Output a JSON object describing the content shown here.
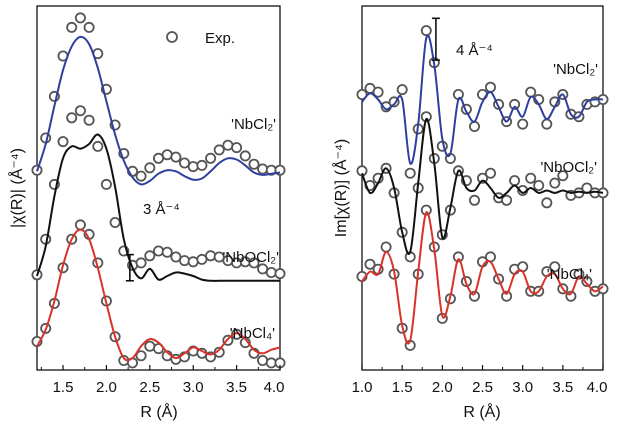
{
  "chart_data": [
    {
      "type": "line",
      "panel": "left",
      "xlabel": "R (Å)",
      "ylabel": "|χ(R)| (Å⁻⁴)",
      "xlim": [
        1.2,
        4.0
      ],
      "xticks": [
        "1.5",
        "2.0",
        "2.5",
        "3.0",
        "3.5",
        "4.0"
      ],
      "xtick_values": [
        1.5,
        2.0,
        2.5,
        3.0,
        3.5,
        4.0
      ],
      "yticks": "none",
      "legend": {
        "label": "Exp.",
        "marker": "open-circle",
        "position": "top-right"
      },
      "scale_bar": {
        "label": "3 Å⁻⁴",
        "from": 3.45,
        "to": 4.55,
        "x": 2.27
      },
      "stack_offsets": [
        7.5,
        3.4,
        0
      ],
      "series": [
        {
          "name": "'NbCl₂'",
          "fit_color": "#2e3f9e",
          "x": [
            1.2,
            1.3,
            1.4,
            1.5,
            1.6,
            1.7,
            1.8,
            1.9,
            2.0,
            2.1,
            2.2,
            2.3,
            2.4,
            2.5,
            2.6,
            2.7,
            2.8,
            2.9,
            3.0,
            3.1,
            3.2,
            3.3,
            3.4,
            3.5,
            3.6,
            3.7,
            3.8,
            3.9,
            4.0
          ],
          "fit": [
            0.55,
            1.7,
            3.3,
            4.8,
            5.8,
            6.2,
            5.9,
            4.9,
            3.5,
            2.1,
            1.0,
            0.3,
            0.0,
            0.15,
            0.45,
            0.6,
            0.55,
            0.35,
            0.2,
            0.25,
            0.55,
            0.9,
            1.1,
            1.05,
            0.8,
            0.5,
            0.4,
            0.45,
            0.5
          ],
          "exp": [
            0.6,
            1.95,
            3.7,
            5.4,
            6.6,
            7.0,
            6.6,
            5.5,
            4.0,
            2.5,
            1.3,
            0.55,
            0.35,
            0.7,
            1.1,
            1.25,
            1.15,
            0.9,
            0.75,
            0.8,
            1.1,
            1.45,
            1.65,
            1.55,
            1.2,
            0.85,
            0.65,
            0.6,
            0.6
          ]
        },
        {
          "name": "'NbOCl₂'",
          "fit_color": "#111111",
          "x": [
            1.2,
            1.3,
            1.4,
            1.5,
            1.6,
            1.7,
            1.8,
            1.9,
            2.0,
            2.1,
            2.2,
            2.3,
            2.4,
            2.5,
            2.6,
            2.7,
            2.8,
            2.9,
            3.0,
            3.1,
            3.2,
            3.3,
            3.4,
            3.5,
            3.6,
            3.7,
            3.8,
            3.9,
            4.0
          ],
          "fit": [
            0.25,
            1.5,
            3.6,
            5.2,
            5.7,
            5.6,
            5.8,
            6.2,
            5.6,
            4.0,
            1.8,
            0.6,
            0.15,
            0.55,
            0.1,
            0.25,
            0.4,
            0.35,
            0.25,
            0.1,
            0.05,
            0.05,
            0.05,
            0.05,
            0.05,
            0.05,
            0.05,
            0.05,
            0.05
          ],
          "exp": [
            0.3,
            1.8,
            4.1,
            5.9,
            6.9,
            7.2,
            6.8,
            5.7,
            4.1,
            2.5,
            1.3,
            0.7,
            0.8,
            1.1,
            1.3,
            1.25,
            1.05,
            0.9,
            0.85,
            0.95,
            1.1,
            1.05,
            0.9,
            0.8,
            0.85,
            0.8,
            0.55,
            0.4,
            0.35
          ]
        },
        {
          "name": "'NbCl₄'",
          "fit_color": "#d7332a",
          "x": [
            1.2,
            1.3,
            1.4,
            1.5,
            1.6,
            1.7,
            1.8,
            1.9,
            2.0,
            2.1,
            2.2,
            2.3,
            2.4,
            2.5,
            2.6,
            2.7,
            2.8,
            2.9,
            3.0,
            3.1,
            3.2,
            3.3,
            3.4,
            3.5,
            3.6,
            3.7,
            3.8,
            3.9,
            4.0
          ],
          "fit": [
            0.7,
            1.4,
            2.6,
            4.1,
            5.2,
            5.6,
            5.2,
            4.0,
            2.5,
            1.1,
            0.2,
            0.2,
            0.7,
            1.0,
            0.85,
            0.45,
            0.2,
            0.4,
            0.65,
            0.5,
            0.35,
            0.55,
            1.0,
            1.25,
            1.0,
            0.55,
            0.4,
            0.55,
            0.65
          ],
          "exp": [
            0.9,
            1.45,
            2.5,
            4.0,
            5.2,
            5.8,
            5.4,
            4.2,
            2.6,
            1.1,
            0.1,
            0.0,
            0.3,
            0.7,
            0.6,
            0.3,
            0.15,
            0.25,
            0.5,
            0.4,
            0.25,
            0.45,
            0.95,
            1.2,
            0.85,
            0.4,
            0.1,
            0.0,
            0.0
          ]
        }
      ]
    },
    {
      "type": "line",
      "panel": "right",
      "xlabel": "R (Å)",
      "ylabel": "Im[χ(R)] (Å⁻⁴)",
      "xlim": [
        1.0,
        4.0
      ],
      "xticks": [
        "1.0",
        "1.5",
        "2.0",
        "2.5",
        "3.0",
        "3.5",
        "4.0"
      ],
      "xtick_values": [
        1.0,
        1.5,
        2.0,
        2.5,
        3.0,
        3.5,
        4.0
      ],
      "yticks": "none",
      "scale_bar": {
        "label": "4 Å⁻⁴",
        "from": 9.0,
        "to": 10.7,
        "x": 1.92
      },
      "stack_offsets": [
        7.0,
        3.6,
        0
      ],
      "series": [
        {
          "name": "'NbCl₂'",
          "fit_color": "#2e3f9e",
          "x": [
            1.0,
            1.1,
            1.2,
            1.3,
            1.4,
            1.5,
            1.6,
            1.7,
            1.8,
            1.9,
            2.0,
            2.1,
            2.2,
            2.3,
            2.4,
            2.5,
            2.6,
            2.7,
            2.8,
            2.9,
            3.0,
            3.1,
            3.2,
            3.3,
            3.4,
            3.5,
            3.6,
            3.7,
            3.8,
            3.9,
            4.0
          ],
          "fit": [
            0.3,
            0.65,
            0.4,
            0.0,
            0.2,
            0.4,
            -2.2,
            -0.6,
            2.9,
            1.8,
            -1.2,
            -1.8,
            0.4,
            -0.1,
            -0.5,
            0.3,
            0.7,
            0.1,
            -0.5,
            0.1,
            -0.3,
            0.5,
            0.2,
            -0.4,
            0.1,
            0.6,
            -0.2,
            -0.3,
            0.3,
            0.4,
            0.4
          ],
          "exp": [
            0.6,
            0.85,
            0.7,
            0.1,
            0.3,
            0.8,
            -2.6,
            -0.8,
            3.2,
            1.9,
            -1.5,
            -2.0,
            0.6,
            0.0,
            -0.7,
            0.6,
            0.9,
            0.2,
            -0.5,
            0.2,
            -0.6,
            0.7,
            0.4,
            -0.6,
            0.3,
            0.6,
            -0.2,
            -0.3,
            0.2,
            0.3,
            0.4
          ]
        },
        {
          "name": "'NbOCl₂'",
          "fit_color": "#111111",
          "x": [
            1.0,
            1.1,
            1.2,
            1.3,
            1.4,
            1.5,
            1.6,
            1.7,
            1.8,
            1.9,
            2.0,
            2.1,
            2.2,
            2.3,
            2.4,
            2.5,
            2.6,
            2.7,
            2.8,
            2.9,
            3.0,
            3.1,
            3.2,
            3.3,
            3.4,
            3.5,
            3.6,
            3.7,
            3.8,
            3.9,
            4.0
          ],
          "fit": [
            0.8,
            0.0,
            0.4,
            1.0,
            0.2,
            -1.6,
            -2.4,
            0.4,
            3.0,
            1.2,
            -1.8,
            -0.6,
            0.9,
            0.2,
            0.1,
            0.5,
            0.2,
            -0.2,
            0.0,
            0.3,
            0.0,
            0.2,
            0.0,
            0.1,
            0.0,
            0.1,
            0.0,
            0.05,
            0.0,
            0.05,
            0.0
          ],
          "exp": [
            0.9,
            0.3,
            0.6,
            1.0,
            0.0,
            -1.6,
            -2.6,
            0.2,
            3.1,
            1.4,
            -1.7,
            -0.7,
            0.9,
            0.5,
            -0.3,
            0.6,
            0.8,
            -0.2,
            -0.3,
            0.5,
            0.1,
            0.6,
            0.3,
            -0.4,
            0.4,
            0.7,
            -0.1,
            0.0,
            0.2,
            0.0,
            0.0
          ]
        },
        {
          "name": "'NbCl₄'",
          "fit_color": "#d7332a",
          "x": [
            1.0,
            1.1,
            1.2,
            1.3,
            1.4,
            1.5,
            1.6,
            1.7,
            1.8,
            1.9,
            2.0,
            2.1,
            2.2,
            2.3,
            2.4,
            2.5,
            2.6,
            2.7,
            2.8,
            2.9,
            3.0,
            3.1,
            3.2,
            3.3,
            3.4,
            3.5,
            3.6,
            3.7,
            3.8,
            3.9,
            4.0
          ],
          "fit": [
            0.0,
            0.4,
            0.3,
            1.2,
            0.4,
            -1.8,
            -2.4,
            0.4,
            2.8,
            1.3,
            -1.4,
            -0.6,
            0.9,
            -0.1,
            -0.5,
            0.6,
            0.8,
            0.1,
            -0.5,
            0.3,
            0.4,
            -0.4,
            -0.4,
            0.2,
            0.3,
            -0.3,
            -0.5,
            0.2,
            -0.1,
            -0.4,
            -0.2
          ],
          "exp": [
            0.2,
            0.7,
            0.5,
            1.4,
            0.3,
            -1.9,
            -2.6,
            0.3,
            2.9,
            1.4,
            -1.5,
            -0.7,
            1.0,
            0.0,
            -0.6,
            0.8,
            1.0,
            0.1,
            -0.6,
            0.5,
            0.6,
            -0.4,
            -0.4,
            0.4,
            0.6,
            -0.3,
            -0.6,
            0.3,
            0.0,
            -0.4,
            -0.3
          ]
        }
      ]
    }
  ]
}
